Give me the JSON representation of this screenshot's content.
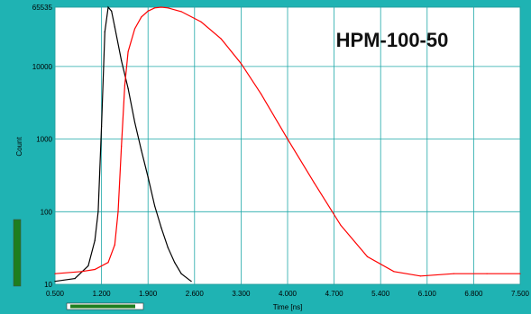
{
  "colors": {
    "frame": "#1fb3b3",
    "plot_bg": "#ffffff",
    "grid": "#1fa8a8",
    "irf_curve": "#000000",
    "decay_curve": "#ff0000",
    "scroll_fill": "#1e7e1e"
  },
  "chart_data": {
    "type": "line",
    "title": "HPM-100-50",
    "xlabel": "Time [ns]",
    "ylabel": "Count",
    "xlim": [
      0.5,
      7.5
    ],
    "ylim": [
      10,
      65535
    ],
    "yscale": "log",
    "grid": true,
    "x_ticks": [
      "0.500",
      "1.200",
      "1.900",
      "2.600",
      "3.300",
      "4.000",
      "4.700",
      "5.400",
      "6.100",
      "6.800",
      "7.500"
    ],
    "y_ticks": [
      "10",
      "100",
      "1000",
      "10000",
      "65535"
    ],
    "series": [
      {
        "color": "#000000",
        "x": [
          0.5,
          0.8,
          1.0,
          1.1,
          1.15,
          1.2,
          1.25,
          1.3,
          1.35,
          1.4,
          1.5,
          1.6,
          1.7,
          1.8,
          1.9,
          2.0,
          2.1,
          2.2,
          2.3,
          2.4,
          2.55
        ],
        "y": [
          11,
          12,
          18,
          40,
          100,
          1500,
          30000,
          65535,
          58000,
          35000,
          12000,
          5000,
          1700,
          700,
          300,
          120,
          60,
          32,
          20,
          14,
          11
        ]
      },
      {
        "color": "#ff0000",
        "x": [
          0.5,
          0.9,
          1.1,
          1.3,
          1.4,
          1.45,
          1.5,
          1.55,
          1.6,
          1.7,
          1.8,
          1.9,
          2.0,
          2.1,
          2.2,
          2.4,
          2.7,
          3.0,
          3.3,
          3.6,
          4.0,
          4.4,
          4.8,
          5.2,
          5.6,
          6.0,
          6.5,
          7.0,
          7.5
        ],
        "y": [
          14,
          15,
          16,
          20,
          35,
          100,
          800,
          5500,
          16000,
          33000,
          48000,
          58000,
          64000,
          65535,
          64000,
          57000,
          41000,
          24000,
          11000,
          4200,
          1000,
          250,
          65,
          24,
          15,
          13,
          14,
          14,
          14
        ]
      }
    ]
  }
}
